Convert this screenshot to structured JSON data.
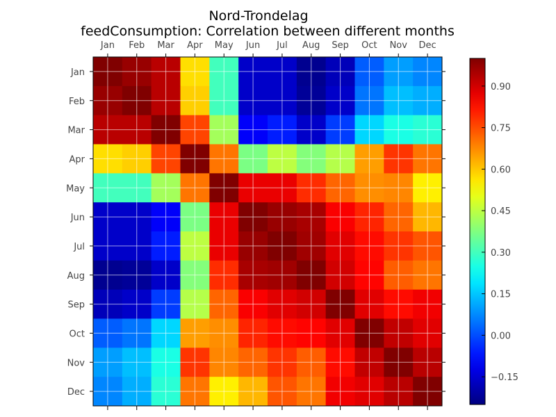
{
  "chart_data": {
    "type": "heatmap",
    "title": "Nord-Trondelag",
    "subtitle": "feedConsumption: Correlation between different months",
    "x_categories": [
      "Jan",
      "Feb",
      "Mar",
      "Apr",
      "May",
      "Jun",
      "Jul",
      "Aug",
      "Sep",
      "Oct",
      "Nov",
      "Dec"
    ],
    "y_categories": [
      "Jan",
      "Feb",
      "Mar",
      "Apr",
      "May",
      "Jun",
      "Jul",
      "Aug",
      "Sep",
      "Oct",
      "Nov",
      "Dec"
    ],
    "x_tick_position": "top",
    "grid": true,
    "colormap": "jet",
    "value_range": [
      -0.25,
      1.0
    ],
    "colorbar_ticks": [
      {
        "value": 0.9,
        "label": "0.90"
      },
      {
        "value": 0.75,
        "label": "0.75"
      },
      {
        "value": 0.6,
        "label": "0.60"
      },
      {
        "value": 0.45,
        "label": "0.45"
      },
      {
        "value": 0.3,
        "label": "0.30"
      },
      {
        "value": 0.15,
        "label": "0.15"
      },
      {
        "value": 0.0,
        "label": "0.00"
      },
      {
        "value": -0.15,
        "label": "−0.15"
      }
    ],
    "values": [
      [
        1.0,
        0.97,
        0.93,
        0.57,
        0.3,
        -0.16,
        -0.16,
        -0.23,
        -0.18,
        0.02,
        0.1,
        0.07
      ],
      [
        0.97,
        1.0,
        0.93,
        0.59,
        0.3,
        -0.16,
        -0.16,
        -0.22,
        -0.16,
        0.05,
        0.14,
        0.12
      ],
      [
        0.93,
        0.93,
        1.0,
        0.76,
        0.42,
        -0.1,
        -0.06,
        -0.16,
        -0.02,
        0.17,
        0.25,
        0.27
      ],
      [
        0.57,
        0.59,
        0.76,
        1.0,
        0.7,
        0.37,
        0.45,
        0.38,
        0.44,
        0.65,
        0.78,
        0.7
      ],
      [
        0.3,
        0.3,
        0.42,
        0.7,
        1.0,
        0.87,
        0.87,
        0.79,
        0.72,
        0.67,
        0.68,
        0.55
      ],
      [
        -0.16,
        -0.16,
        -0.1,
        0.37,
        0.87,
        1.0,
        0.97,
        0.95,
        0.85,
        0.8,
        0.72,
        0.62
      ],
      [
        -0.16,
        -0.16,
        -0.06,
        0.45,
        0.87,
        0.97,
        1.0,
        0.96,
        0.88,
        0.83,
        0.78,
        0.74
      ],
      [
        -0.23,
        -0.22,
        -0.16,
        0.38,
        0.79,
        0.95,
        0.96,
        1.0,
        0.9,
        0.84,
        0.73,
        0.7
      ],
      [
        -0.18,
        -0.16,
        -0.02,
        0.44,
        0.72,
        0.85,
        0.88,
        0.9,
        1.0,
        0.88,
        0.83,
        0.86
      ],
      [
        0.02,
        0.05,
        0.17,
        0.65,
        0.67,
        0.8,
        0.83,
        0.84,
        0.88,
        1.0,
        0.92,
        0.88
      ],
      [
        0.1,
        0.14,
        0.25,
        0.78,
        0.68,
        0.72,
        0.78,
        0.73,
        0.83,
        0.92,
        1.0,
        0.93
      ],
      [
        0.07,
        0.12,
        0.27,
        0.7,
        0.55,
        0.62,
        0.74,
        0.7,
        0.86,
        0.88,
        0.93,
        1.0
      ]
    ]
  }
}
